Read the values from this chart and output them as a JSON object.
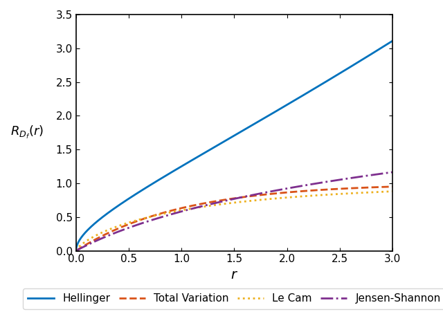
{
  "xlim": [
    0,
    3
  ],
  "ylim": [
    0,
    3.5
  ],
  "xticks": [
    0,
    0.5,
    1,
    1.5,
    2,
    2.5,
    3
  ],
  "yticks": [
    0,
    0.5,
    1,
    1.5,
    2,
    2.5,
    3,
    3.5
  ],
  "xlabel": "$r$",
  "ylabel": "$R_{D_f}(r)$",
  "colors": {
    "Hellinger": "#0072BD",
    "Total Variation": "#D95319",
    "Le Cam": "#EDB120",
    "Jensen-Shannon": "#7E2F8E"
  },
  "linestyles": {
    "Hellinger": "-",
    "Total Variation": "--",
    "Le Cam": ":",
    "Jensen-Shannon": "-."
  },
  "linewidths": {
    "Hellinger": 2.0,
    "Total Variation": 2.0,
    "Le Cam": 2.0,
    "Jensen-Shannon": 2.0
  },
  "legend_labels": [
    "Hellinger",
    "Total Variation",
    "Le Cam",
    "Jensen-Shannon"
  ],
  "hellinger_c1": 0.962,
  "hellinger_c2": 0.833,
  "tv_a": 1.0,
  "lecam_a": 0.916,
  "lecam_b": 0.764,
  "js_c": 0.84,
  "n_points": 1000
}
